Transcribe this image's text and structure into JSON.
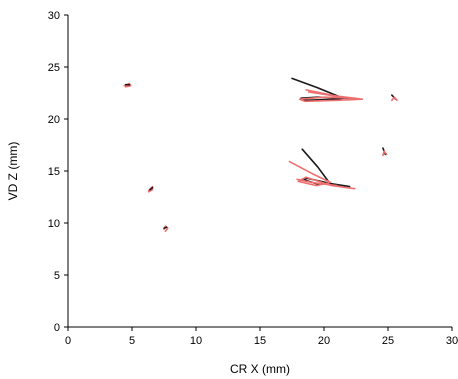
{
  "chart_data": {
    "type": "line",
    "title": "",
    "xlabel": "CR X (mm)",
    "ylabel": "VD Z (mm)",
    "xlim": [
      0,
      30
    ],
    "ylim": [
      0,
      30
    ],
    "xticks": [
      "0",
      "5",
      "10",
      "15",
      "20",
      "25",
      "30"
    ],
    "yticks": [
      "0",
      "5",
      "10",
      "15",
      "20",
      "25",
      "30"
    ],
    "grid": false,
    "legend": "none",
    "colors": {
      "black_series": "#1a1a1a",
      "red_series": "#ee6f6f"
    },
    "series": [
      {
        "color": "#ee6f6f",
        "points": [
          [
            4.4,
            23.2
          ],
          [
            4.8,
            23.4
          ],
          [
            4.9,
            23.2
          ],
          [
            4.5,
            23.1
          ]
        ]
      },
      {
        "color": "#1a1a1a",
        "points": [
          [
            4.5,
            23.3
          ],
          [
            4.8,
            23.3
          ]
        ]
      },
      {
        "color": "#ee6f6f",
        "points": [
          [
            6.3,
            13.1
          ],
          [
            6.6,
            13.5
          ],
          [
            6.6,
            13.2
          ],
          [
            6.3,
            13.0
          ]
        ]
      },
      {
        "color": "#1a1a1a",
        "points": [
          [
            6.4,
            13.2
          ],
          [
            6.6,
            13.4
          ]
        ]
      },
      {
        "color": "#ee6f6f",
        "points": [
          [
            7.5,
            9.4
          ],
          [
            7.6,
            9.7
          ],
          [
            7.8,
            9.5
          ],
          [
            7.6,
            9.2
          ]
        ]
      },
      {
        "color": "#1a1a1a",
        "points": [
          [
            7.5,
            9.5
          ],
          [
            7.7,
            9.6
          ]
        ]
      },
      {
        "color": "#1a1a1a",
        "points": [
          [
            17.5,
            23.9
          ],
          [
            19.5,
            23.0
          ],
          [
            21.5,
            22.0
          ],
          [
            21.0,
            21.9
          ],
          [
            18.5,
            21.8
          ],
          [
            18.2,
            22.0
          ],
          [
            19.5,
            22.1
          ],
          [
            22.0,
            22.0
          ]
        ]
      },
      {
        "color": "#ee6f6f",
        "points": [
          [
            18.6,
            22.8
          ],
          [
            21.0,
            22.2
          ],
          [
            23.0,
            21.9
          ],
          [
            21.0,
            21.8
          ],
          [
            18.5,
            21.7
          ],
          [
            18.1,
            21.9
          ],
          [
            20.0,
            22.1
          ],
          [
            22.5,
            22.0
          ]
        ]
      },
      {
        "color": "#ee6f6f",
        "points": [
          [
            18.8,
            22.6
          ],
          [
            22.0,
            22.0
          ]
        ]
      },
      {
        "color": "#1a1a1a",
        "points": [
          [
            25.3,
            22.3
          ],
          [
            25.6,
            21.9
          ]
        ]
      },
      {
        "color": "#ee6f6f",
        "points": [
          [
            25.3,
            21.8
          ],
          [
            25.5,
            22.1
          ],
          [
            25.7,
            21.8
          ]
        ]
      },
      {
        "color": "#1a1a1a",
        "points": [
          [
            24.6,
            17.2
          ],
          [
            24.8,
            16.6
          ]
        ]
      },
      {
        "color": "#ee6f6f",
        "points": [
          [
            24.6,
            16.5
          ],
          [
            24.7,
            16.9
          ],
          [
            24.9,
            16.6
          ]
        ]
      },
      {
        "color": "#1a1a1a",
        "points": [
          [
            18.3,
            17.1
          ],
          [
            19.5,
            15.4
          ],
          [
            20.4,
            13.9
          ],
          [
            19.6,
            13.7
          ],
          [
            18.3,
            14.2
          ],
          [
            18.7,
            14.3
          ],
          [
            20.5,
            13.8
          ],
          [
            22.0,
            13.5
          ]
        ]
      },
      {
        "color": "#ee6f6f",
        "points": [
          [
            17.3,
            15.9
          ],
          [
            19.0,
            14.8
          ],
          [
            20.5,
            13.9
          ],
          [
            19.4,
            13.6
          ],
          [
            18.0,
            14.0
          ],
          [
            18.6,
            14.4
          ],
          [
            20.6,
            13.6
          ],
          [
            22.4,
            13.3
          ]
        ]
      },
      {
        "color": "#ee6f6f",
        "points": [
          [
            17.9,
            14.2
          ],
          [
            19.0,
            13.9
          ],
          [
            21.0,
            13.6
          ]
        ]
      }
    ]
  }
}
